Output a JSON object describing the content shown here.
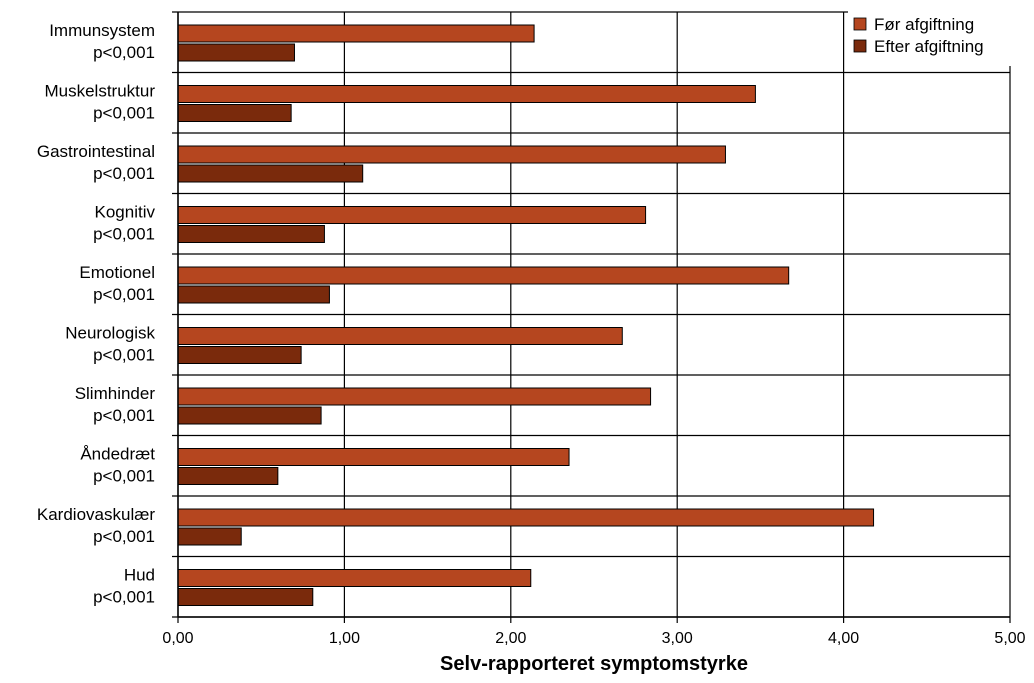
{
  "chart_data": {
    "type": "bar",
    "orientation": "horizontal",
    "title": "",
    "xlabel": "Selv-rapporteret symptomstyrke",
    "ylabel": "",
    "xlim": [
      0,
      5
    ],
    "x_ticks": [
      "0,00",
      "1,00",
      "2,00",
      "3,00",
      "4,00",
      "5,00"
    ],
    "grid": true,
    "legend_position": "top-right",
    "categories": [
      {
        "name": "Immunsystem",
        "p": "p<0,001"
      },
      {
        "name": "Muskelstruktur",
        "p": "p<0,001"
      },
      {
        "name": "Gastrointestinal",
        "p": "p<0,001"
      },
      {
        "name": "Kognitiv",
        "p": "p<0,001"
      },
      {
        "name": "Emotionel",
        "p": "p<0,001"
      },
      {
        "name": "Neurologisk",
        "p": "p<0,001"
      },
      {
        "name": "Slimhinder",
        "p": "p<0,001"
      },
      {
        "name": "Åndedræt",
        "p": "p<0,001"
      },
      {
        "name": "Kardiovaskulær",
        "p": "p<0,001"
      },
      {
        "name": "Hud",
        "p": "p<0,001"
      }
    ],
    "series": [
      {
        "name": "Før afgiftning",
        "color": "#B5461F",
        "values": [
          2.14,
          3.47,
          3.29,
          2.81,
          3.67,
          2.67,
          2.84,
          2.35,
          4.18,
          2.12
        ]
      },
      {
        "name": "Efter afgiftning",
        "color": "#7A2A0C",
        "values": [
          0.7,
          0.68,
          1.11,
          0.88,
          0.91,
          0.74,
          0.86,
          0.6,
          0.38,
          0.81
        ]
      }
    ]
  }
}
